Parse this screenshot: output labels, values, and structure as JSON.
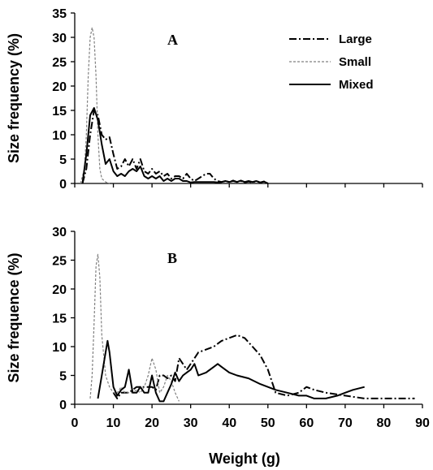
{
  "chart_data": [
    {
      "type": "line",
      "panel_label": "A",
      "ylabel": "Size frequency (%)",
      "xlabel": "",
      "xlim": [
        0,
        90
      ],
      "ylim": [
        0,
        35
      ],
      "xticks": [
        0,
        10,
        20,
        30,
        40,
        50,
        60,
        70,
        80,
        90
      ],
      "yticks": [
        0,
        5,
        10,
        15,
        20,
        25,
        30,
        35
      ],
      "show_x_tick_labels": false,
      "grid": false,
      "legend": "top-right",
      "series": [
        {
          "name": "Large",
          "style": "dashdot",
          "color": "#000000",
          "x": [
            2,
            3,
            4,
            5,
            6,
            7,
            8,
            9,
            10,
            11,
            12,
            13,
            14,
            15,
            16,
            17,
            18,
            19,
            20,
            21,
            22,
            23,
            24,
            25,
            26,
            27,
            28,
            29,
            30,
            31,
            32,
            33,
            34,
            35,
            36,
            37,
            38,
            39,
            40,
            41,
            42,
            43,
            44,
            45,
            46,
            47,
            48,
            49,
            50
          ],
          "y": [
            0,
            3,
            10,
            15,
            14,
            10,
            9,
            9.5,
            6,
            3,
            3.5,
            5,
            3.5,
            5,
            3,
            5,
            2.5,
            2,
            3,
            2,
            2.5,
            1.5,
            2,
            1,
            1.5,
            1.5,
            1,
            2,
            1,
            0.5,
            1,
            1.5,
            2,
            2,
            1,
            0.5,
            0.3,
            0.5,
            0.3,
            0.6,
            0.3,
            0.5,
            0.2,
            0.4,
            0.2,
            0.5,
            0.2,
            0.4,
            0
          ]
        },
        {
          "name": "Small",
          "style": "dotted",
          "color": "#808080",
          "x": [
            1.5,
            2.5,
            3,
            3.5,
            4,
            4.5,
            5,
            5.5,
            6,
            6.5,
            7,
            8,
            9
          ],
          "y": [
            0,
            3,
            10,
            22,
            30,
            32,
            30,
            22,
            10,
            3,
            1,
            0.3,
            0
          ]
        },
        {
          "name": "Mixed",
          "style": "solid",
          "color": "#000000",
          "x": [
            2,
            3,
            4,
            5,
            6,
            7,
            8,
            9,
            10,
            11,
            12,
            13,
            14,
            15,
            16,
            17,
            18,
            19,
            20,
            21,
            22,
            23,
            24,
            25,
            26,
            27,
            28,
            29,
            30,
            31,
            32,
            33,
            34,
            35,
            36,
            37,
            38,
            39,
            40,
            41,
            42,
            43,
            44,
            45,
            46,
            47,
            48,
            49,
            50
          ],
          "y": [
            0,
            6,
            14,
            15.5,
            13,
            8,
            4,
            5,
            2.5,
            1.5,
            2,
            1.5,
            2.5,
            3,
            2.5,
            3.5,
            1.5,
            1,
            1.5,
            1,
            1.5,
            0.5,
            1,
            0.5,
            1,
            1,
            0.5,
            0.5,
            0.2,
            0.3,
            0.3,
            0.3,
            0.3,
            0.3,
            0.3,
            0.2,
            0.3,
            0.5,
            0.3,
            0.5,
            0.3,
            0.6,
            0.3,
            0.5,
            0.3,
            0.5,
            0.2,
            0.4,
            0
          ]
        }
      ]
    },
    {
      "type": "line",
      "panel_label": "B",
      "ylabel": "Size frequence (%)",
      "xlabel": "Weight (g)",
      "xlim": [
        0,
        90
      ],
      "ylim": [
        0,
        30
      ],
      "xticks": [
        0,
        10,
        20,
        30,
        40,
        50,
        60,
        70,
        80,
        90
      ],
      "yticks": [
        0,
        5,
        10,
        15,
        20,
        25,
        30
      ],
      "show_x_tick_labels": true,
      "grid": false,
      "series": [
        {
          "name": "Large",
          "style": "dashdot",
          "color": "#000000",
          "x": [
            10,
            11,
            12,
            13,
            14,
            15,
            16,
            17,
            18,
            19,
            20,
            21,
            22,
            23,
            24,
            25,
            26,
            27,
            28,
            29,
            30,
            32,
            34,
            36,
            38,
            40,
            42,
            44,
            46,
            48,
            50,
            52,
            55,
            58,
            60,
            62,
            65,
            70,
            75,
            80,
            85,
            88
          ],
          "y": [
            2,
            1,
            2,
            2,
            2,
            2.5,
            3,
            3,
            3,
            3,
            3,
            2.5,
            5,
            5,
            4.5,
            5,
            4,
            8,
            7,
            6,
            7,
            9,
            9.5,
            10,
            11,
            11.5,
            12,
            11.5,
            10,
            8.5,
            6,
            2,
            1.5,
            2,
            3,
            2.5,
            2,
            1.5,
            1,
            1,
            1,
            1
          ]
        },
        {
          "name": "Small",
          "style": "dotted",
          "color": "#808080",
          "x": [
            4,
            4.5,
            5,
            5.5,
            6,
            6.5,
            7,
            8,
            9,
            10,
            11,
            12,
            13,
            14,
            15,
            16,
            17,
            18,
            19,
            20,
            21,
            22,
            23,
            24,
            25,
            26,
            27
          ],
          "y": [
            1,
            5,
            14,
            24,
            26,
            22,
            12,
            5,
            3,
            2,
            2,
            3,
            2,
            2,
            2,
            2.5,
            2,
            3,
            5,
            8,
            6,
            2,
            3,
            5,
            4,
            2,
            0.5
          ]
        },
        {
          "name": "Mixed",
          "style": "solid",
          "color": "#000000",
          "x": [
            6,
            7,
            8,
            8.5,
            9,
            9.5,
            10,
            11,
            12,
            13,
            14,
            15,
            16,
            17,
            18,
            19,
            20,
            21,
            22,
            23,
            24,
            25,
            26,
            27,
            28,
            29,
            30,
            31,
            32,
            34,
            36,
            37,
            38,
            40,
            42,
            45,
            48,
            50,
            52,
            55,
            58,
            60,
            62,
            65,
            68,
            70,
            72,
            75
          ],
          "y": [
            1,
            5,
            9,
            11,
            9,
            6,
            3,
            1.5,
            2.5,
            3,
            6,
            2,
            2,
            3,
            2,
            2,
            5,
            2,
            0.5,
            0.5,
            2,
            3.5,
            5.5,
            4,
            5,
            5.5,
            6,
            7,
            5,
            5.5,
            6.5,
            7,
            6.5,
            5.5,
            5,
            4.5,
            3.5,
            3,
            2.5,
            2,
            1.5,
            1.5,
            1,
            1,
            1.5,
            2,
            2.5,
            3
          ]
        }
      ]
    }
  ]
}
